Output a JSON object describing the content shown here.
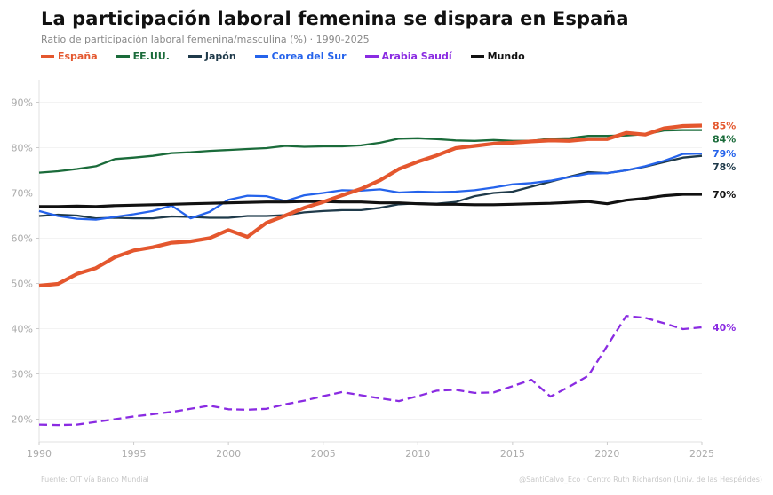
{
  "header": {
    "title": "La participación laboral femenina se dispara en España",
    "subtitle": "Ratio de participación laboral femenina/masculina (%) · 1990-2025"
  },
  "footer": {
    "source": "Fuente: OIT vía Banco Mundial",
    "credit": "@SantiCalvo_Eco · Centro Ruth Richardson (Univ. de las Hespérides)"
  },
  "chart_data": {
    "type": "line",
    "title": "La participación laboral femenina se dispara en España",
    "subtitle": "Ratio de participación laboral femenina/masculina (%) · 1990-2025",
    "xlabel": "",
    "ylabel": "",
    "xlim": [
      1990,
      2025
    ],
    "ylim": [
      15,
      95
    ],
    "x_ticks": [
      1990,
      1995,
      2000,
      2005,
      2010,
      2015,
      2020,
      2025
    ],
    "y_ticks": [
      20,
      30,
      40,
      50,
      60,
      70,
      80,
      90
    ],
    "y_tick_labels": [
      "20%",
      "30%",
      "40%",
      "50%",
      "60%",
      "70%",
      "80%",
      "90%"
    ],
    "grid": "horizontal",
    "legend_position": "top-left",
    "x": [
      1990,
      1991,
      1992,
      1993,
      1994,
      1995,
      1996,
      1997,
      1998,
      1999,
      2000,
      2001,
      2002,
      2003,
      2004,
      2005,
      2006,
      2007,
      2008,
      2009,
      2010,
      2011,
      2012,
      2013,
      2014,
      2015,
      2016,
      2017,
      2018,
      2019,
      2020,
      2021,
      2022,
      2023,
      2024,
      2025
    ],
    "series": [
      {
        "name": "EE.UU.",
        "color": "#1a6b3a",
        "style": "solid",
        "weight": "normal",
        "end_label": "84%",
        "values": [
          74.5,
          74.8,
          75.3,
          75.9,
          77.5,
          77.8,
          78.2,
          78.8,
          79.0,
          79.3,
          79.5,
          79.7,
          79.9,
          80.4,
          80.2,
          80.3,
          80.3,
          80.5,
          81.1,
          82.0,
          82.1,
          81.9,
          81.6,
          81.5,
          81.7,
          81.5,
          81.5,
          82.0,
          82.1,
          82.6,
          82.6,
          82.7,
          83.0,
          83.8,
          83.9,
          83.9
        ]
      },
      {
        "name": "Japón",
        "color": "#1f3a4a",
        "style": "solid",
        "weight": "normal",
        "end_label": "78%",
        "values": [
          64.9,
          65.2,
          65.0,
          64.4,
          64.5,
          64.4,
          64.4,
          64.8,
          64.7,
          64.5,
          64.5,
          64.9,
          64.9,
          65.1,
          65.7,
          66.0,
          66.2,
          66.2,
          66.7,
          67.5,
          67.7,
          67.6,
          68.0,
          69.3,
          70.0,
          70.3,
          71.4,
          72.5,
          73.6,
          74.6,
          74.4,
          75.0,
          75.8,
          76.8,
          77.8,
          78.2
        ]
      },
      {
        "name": "Corea del Sur",
        "color": "#2563eb",
        "style": "solid",
        "weight": "normal",
        "end_label": "79%",
        "values": [
          66.0,
          64.9,
          64.3,
          64.1,
          64.7,
          65.3,
          66.0,
          67.2,
          64.4,
          65.8,
          68.5,
          69.4,
          69.3,
          68.2,
          69.5,
          70.0,
          70.6,
          70.5,
          70.8,
          70.1,
          70.3,
          70.2,
          70.3,
          70.6,
          71.2,
          71.9,
          72.2,
          72.7,
          73.5,
          74.3,
          74.4,
          75.0,
          75.9,
          77.1,
          78.6,
          78.7
        ]
      },
      {
        "name": "Arabia Saudí",
        "color": "#8a2be2",
        "style": "dashed",
        "weight": "normal",
        "end_label": "40%",
        "values": [
          18.8,
          18.7,
          18.8,
          19.4,
          20.0,
          20.6,
          21.1,
          21.6,
          22.3,
          23.0,
          22.2,
          22.1,
          22.3,
          23.3,
          24.1,
          25.1,
          26.0,
          25.3,
          24.6,
          24.0,
          25.1,
          26.3,
          26.5,
          25.8,
          25.9,
          27.3,
          28.7,
          25.0,
          27.2,
          29.6,
          36.2,
          42.8,
          42.4,
          41.2,
          39.9,
          40.3
        ]
      },
      {
        "name": "Mundo",
        "color": "#111111",
        "style": "solid",
        "weight": "bold",
        "end_label": "70%",
        "values": [
          67.0,
          67.0,
          67.1,
          67.0,
          67.2,
          67.3,
          67.4,
          67.5,
          67.6,
          67.7,
          67.8,
          67.9,
          68.0,
          68.0,
          68.1,
          68.1,
          68.0,
          68.0,
          67.8,
          67.8,
          67.6,
          67.5,
          67.5,
          67.4,
          67.4,
          67.5,
          67.6,
          67.7,
          67.9,
          68.1,
          67.6,
          68.4,
          68.8,
          69.4,
          69.7,
          69.7
        ]
      },
      {
        "name": "España",
        "color": "#e4572e",
        "style": "solid",
        "weight": "heavy",
        "end_label": "85%",
        "values": [
          49.5,
          49.9,
          52.1,
          53.4,
          55.8,
          57.3,
          58.0,
          59.0,
          59.3,
          60.0,
          61.8,
          60.3,
          63.4,
          65.0,
          66.7,
          68.0,
          69.5,
          70.9,
          72.8,
          75.3,
          76.9,
          78.3,
          79.9,
          80.4,
          80.9,
          81.1,
          81.4,
          81.6,
          81.5,
          81.9,
          81.9,
          83.3,
          82.9,
          84.3,
          84.8,
          84.9
        ]
      }
    ],
    "legend_order": [
      "España",
      "EE.UU.",
      "Japón",
      "Corea del Sur",
      "Arabia Saudí",
      "Mundo"
    ],
    "end_labels_order": [
      "España",
      "EE.UU.",
      "Japón",
      "Corea del Sur",
      "Mundo",
      "Arabia Saudí"
    ]
  }
}
